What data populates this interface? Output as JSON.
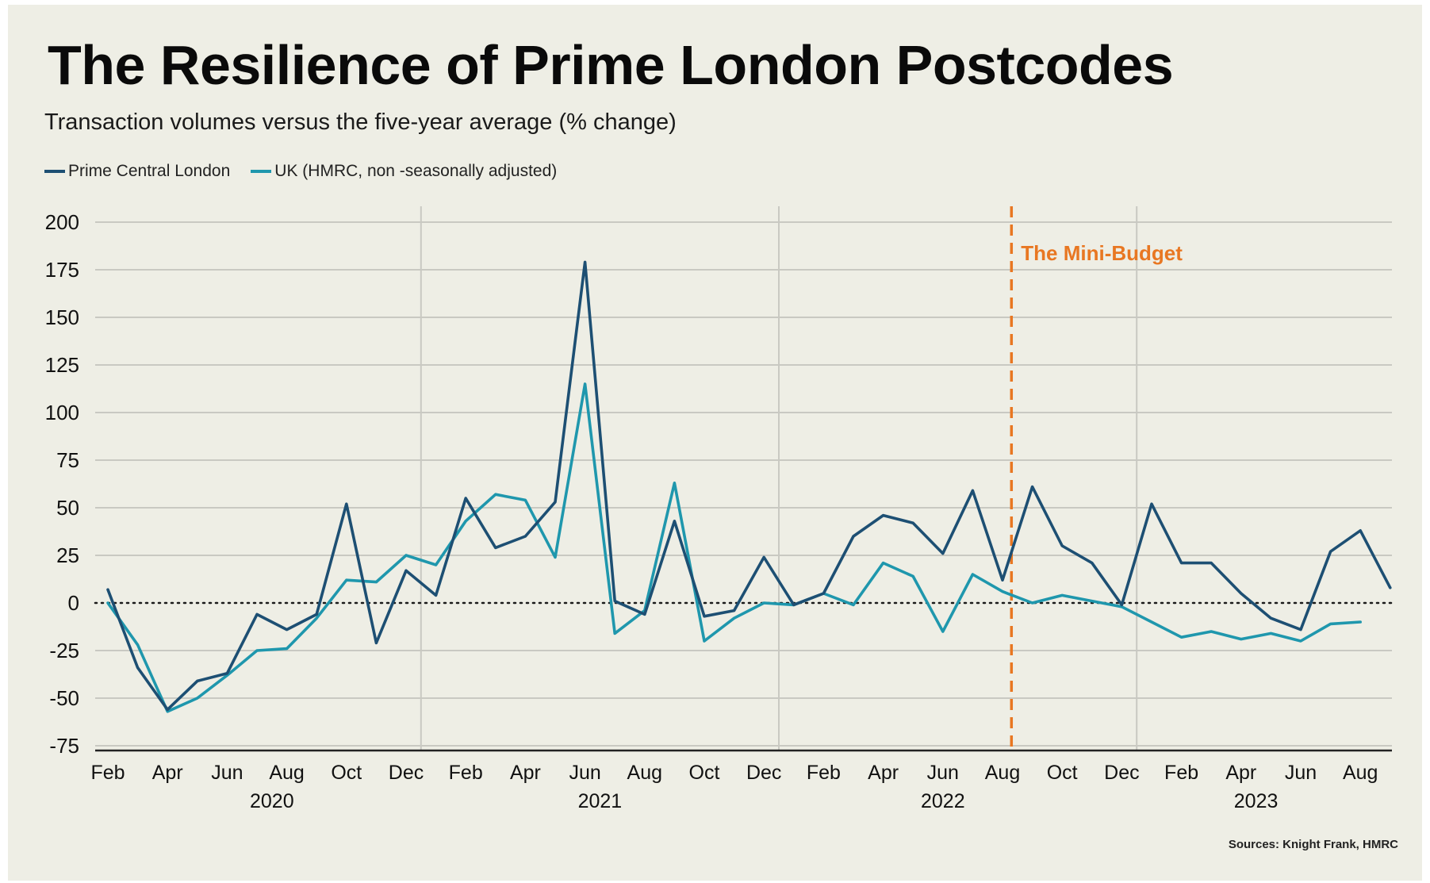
{
  "header": {
    "title": "The Resilience of Prime London Postcodes",
    "subtitle": "Transaction volumes versus the five-year average (% change)"
  },
  "source": "Sources: Knight Frank, HMRC",
  "colors": {
    "pcl": "#1d4f73",
    "uk": "#1f97ad",
    "annotation": "#e87722",
    "grid": "#c9c9c2",
    "zero": "#1a1a1a"
  },
  "chart_data": {
    "type": "line",
    "title": "The Resilience of Prime London Postcodes",
    "ylabel": "Transaction volumes versus the five-year average (% change)",
    "ylim": [
      -75,
      200
    ],
    "yticks": [
      200,
      175,
      150,
      125,
      100,
      75,
      50,
      25,
      0,
      -25,
      -50,
      -75
    ],
    "x": [
      "Feb 2020",
      "Mar 2020",
      "Apr 2020",
      "May 2020",
      "Jun 2020",
      "Jul 2020",
      "Aug 2020",
      "Sep 2020",
      "Oct 2020",
      "Nov 2020",
      "Dec 2020",
      "Jan 2021",
      "Feb 2021",
      "Mar 2021",
      "Apr 2021",
      "May 2021",
      "Jun 2021",
      "Jul 2021",
      "Aug 2021",
      "Sep 2021",
      "Oct 2021",
      "Nov 2021",
      "Dec 2021",
      "Jan 2022",
      "Feb 2022",
      "Mar 2022",
      "Apr 2022",
      "May 2022",
      "Jun 2022",
      "Jul 2022",
      "Aug 2022",
      "Sep 2022",
      "Oct 2022",
      "Nov 2022",
      "Dec 2022",
      "Jan 2023",
      "Feb 2023",
      "Mar 2023",
      "Apr 2023",
      "May 2023",
      "Jun 2023",
      "Jul 2023",
      "Aug 2023",
      "Sep 2023"
    ],
    "month_tick_labels": [
      "Feb",
      "Apr",
      "Jun",
      "Aug",
      "Oct",
      "Dec",
      "Feb",
      "Apr",
      "Jun",
      "Aug",
      "Oct",
      "Dec",
      "Feb",
      "Apr",
      "Jun",
      "Aug",
      "Oct",
      "Dec",
      "Feb",
      "Apr",
      "Jun",
      "Aug"
    ],
    "year_labels": [
      {
        "label": "2020",
        "center_index": 5.5
      },
      {
        "label": "2021",
        "center_index": 16.5
      },
      {
        "label": "2022",
        "center_index": 28
      },
      {
        "label": "2023",
        "center_index": 38.5
      }
    ],
    "year_dividers": [
      10.5,
      22.5,
      34.5
    ],
    "series": [
      {
        "name": "Prime Central London",
        "values": [
          7,
          -34,
          -56,
          -41,
          -37,
          -6,
          -14,
          -6,
          52,
          -21,
          17,
          4,
          55,
          29,
          35,
          53,
          179,
          1,
          -6,
          43,
          -7,
          -4,
          24,
          -1,
          5,
          35,
          46,
          42,
          26,
          59,
          12,
          61,
          30,
          21,
          -1,
          52,
          21,
          21,
          5,
          -8,
          -14,
          27,
          38,
          8
        ]
      },
      {
        "name": "UK (HMRC, non -seasonally adjusted)",
        "values": [
          0,
          -22,
          -57,
          -50,
          -38,
          -25,
          -24,
          -8,
          12,
          11,
          25,
          20,
          43,
          57,
          54,
          24,
          115,
          -16,
          -4,
          63,
          -20,
          -8,
          0,
          -1,
          5,
          -1,
          21,
          14,
          -15,
          15,
          6,
          0,
          4,
          1,
          -2,
          -10,
          -18,
          -15,
          -19,
          -16,
          -20,
          -11,
          -10,
          null
        ]
      }
    ],
    "annotations": [
      {
        "type": "vline",
        "at_index": 30.3,
        "label": "The Mini-Budget",
        "style": "dashed"
      }
    ],
    "legend": "top-left",
    "grid": true
  }
}
